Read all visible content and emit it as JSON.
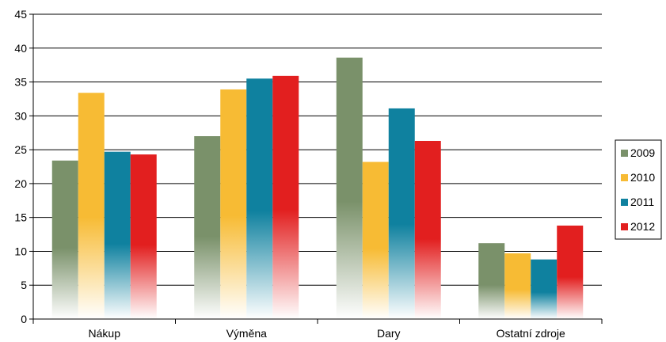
{
  "chart_data": {
    "type": "bar",
    "categories": [
      "Nákup",
      "Výměna",
      "Dary",
      "Ostatní zdroje"
    ],
    "series": [
      {
        "name": "2009",
        "color": "#7a916a",
        "values": [
          23.4,
          27.0,
          38.6,
          11.2
        ]
      },
      {
        "name": "2010",
        "color": "#f7bb34",
        "values": [
          33.4,
          33.9,
          23.2,
          9.7
        ]
      },
      {
        "name": "2011",
        "color": "#0f819f",
        "values": [
          24.7,
          35.5,
          31.1,
          8.8
        ]
      },
      {
        "name": "2012",
        "color": "#e21f1f",
        "values": [
          24.3,
          35.9,
          26.3,
          13.8
        ]
      }
    ],
    "ylim": [
      0,
      45
    ],
    "yticks": [
      "0",
      "5",
      "10",
      "15",
      "20",
      "25",
      "30",
      "35",
      "40",
      "45"
    ],
    "grid": true,
    "legend_position": "right"
  }
}
